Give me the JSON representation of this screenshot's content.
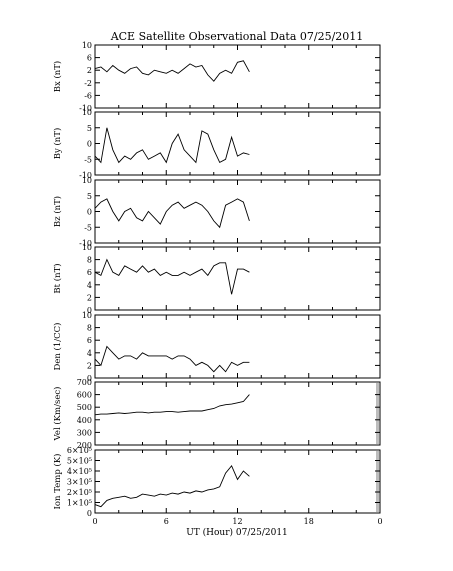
{
  "title": "ACE Satellite Observational Data   07/25/2011",
  "x_label": "UT (Hour)   07/25/2011",
  "x_ticks": [
    "0",
    "6",
    "12",
    "18",
    "0"
  ],
  "chart_data": [
    {
      "type": "line",
      "ylabel": "Bx (nT)",
      "ylim": [
        -10,
        10
      ],
      "yticks": [
        "10",
        "6",
        "2",
        "-2",
        "-6",
        "-10"
      ],
      "ytick_values": [
        10,
        6,
        2,
        -2,
        -6,
        -10
      ],
      "xlim": [
        0,
        24
      ],
      "x": [
        0,
        0.5,
        1,
        1.5,
        2,
        2.5,
        3,
        3.5,
        4,
        4.5,
        5,
        5.5,
        6,
        6.5,
        7,
        7.5,
        8,
        8.5,
        9,
        9.5,
        10,
        10.5,
        11,
        11.5,
        12,
        12.5,
        13
      ],
      "y": [
        2.5,
        3,
        1.5,
        3.5,
        2,
        1,
        2.5,
        3,
        1,
        0.5,
        2,
        1.5,
        1,
        2,
        1,
        2.5,
        4,
        3,
        3.5,
        0.5,
        -1.5,
        1,
        2,
        1,
        4.5,
        5,
        1.5
      ]
    },
    {
      "type": "line",
      "ylabel": "By (nT)",
      "ylim": [
        -10,
        10
      ],
      "yticks": [
        "10",
        "5",
        "0",
        "-5",
        "-10"
      ],
      "ytick_values": [
        10,
        5,
        0,
        -5,
        -10
      ],
      "xlim": [
        0,
        24
      ],
      "x": [
        0,
        0.5,
        1,
        1.5,
        2,
        2.5,
        3,
        3.5,
        4,
        4.5,
        5,
        5.5,
        6,
        6.5,
        7,
        7.5,
        8,
        8.5,
        9,
        9.5,
        10,
        10.5,
        11,
        11.5,
        12,
        12.5,
        13
      ],
      "y": [
        -4,
        -6,
        5,
        -2,
        -6,
        -4,
        -5,
        -3,
        -2,
        -5,
        -4,
        -3,
        -6,
        0,
        3,
        -2,
        -4,
        -6,
        4,
        3,
        -2,
        -6,
        -5,
        2,
        -4,
        -3,
        -3.5
      ]
    },
    {
      "type": "line",
      "ylabel": "Bz (nT)",
      "ylim": [
        -10,
        10
      ],
      "yticks": [
        "10",
        "5",
        "0",
        "-5",
        "-10"
      ],
      "ytick_values": [
        10,
        5,
        0,
        -5,
        -10
      ],
      "xlim": [
        0,
        24
      ],
      "x": [
        0,
        0.5,
        1,
        1.5,
        2,
        2.5,
        3,
        3.5,
        4,
        4.5,
        5,
        5.5,
        6,
        6.5,
        7,
        7.5,
        8,
        8.5,
        9,
        9.5,
        10,
        10.5,
        11,
        11.5,
        12,
        12.5,
        13
      ],
      "y": [
        1,
        3,
        4,
        0,
        -3,
        0,
        1,
        -2,
        -3,
        0,
        -2,
        -4,
        0,
        2,
        3,
        1,
        2,
        3,
        2,
        0,
        -3,
        -5,
        2,
        3,
        4,
        3,
        -3
      ]
    },
    {
      "type": "line",
      "ylabel": "Bt (nT)",
      "ylim": [
        0,
        10
      ],
      "yticks": [
        "10",
        "8",
        "6",
        "4",
        "2",
        "0"
      ],
      "ytick_values": [
        10,
        8,
        6,
        4,
        2,
        0
      ],
      "xlim": [
        0,
        24
      ],
      "x": [
        0,
        0.5,
        1,
        1.5,
        2,
        2.5,
        3,
        3.5,
        4,
        4.5,
        5,
        5.5,
        6,
        6.5,
        7,
        7.5,
        8,
        8.5,
        9,
        9.5,
        10,
        10.5,
        11,
        11.5,
        12,
        12.5,
        13
      ],
      "y": [
        6,
        5.5,
        8,
        6,
        5.5,
        7,
        6.5,
        6,
        7,
        6,
        6.5,
        5.5,
        6,
        5.5,
        5.5,
        6,
        5.5,
        6,
        6.5,
        5.5,
        7,
        7.5,
        7.5,
        2.5,
        6.5,
        6.5,
        6
      ]
    },
    {
      "type": "line",
      "ylabel": "Den (1/CC)",
      "ylim": [
        0,
        10
      ],
      "yticks": [
        "10",
        "8",
        "6",
        "4",
        "2",
        "0"
      ],
      "ytick_values": [
        10,
        8,
        6,
        4,
        2,
        0
      ],
      "xlim": [
        0,
        24
      ],
      "x": [
        0,
        0.5,
        1,
        1.5,
        2,
        2.5,
        3,
        3.5,
        4,
        4.5,
        5,
        5.5,
        6,
        6.5,
        7,
        7.5,
        8,
        8.5,
        9,
        9.5,
        10,
        10.5,
        11,
        11.5,
        12,
        12.5,
        13
      ],
      "y": [
        3,
        2,
        5,
        4,
        3,
        3.5,
        3.5,
        3,
        4,
        3.5,
        3.5,
        3.5,
        3.5,
        3,
        3.5,
        3.5,
        3,
        2,
        2.5,
        2,
        1,
        2,
        1,
        2.5,
        2,
        2.5,
        2.5
      ]
    },
    {
      "type": "line",
      "ylabel": "Vel (Km/sec)",
      "ylim": [
        200,
        700
      ],
      "yticks": [
        "700",
        "600",
        "500",
        "400",
        "300",
        "200"
      ],
      "ytick_values": [
        700,
        600,
        500,
        400,
        300,
        200
      ],
      "xlim": [
        0,
        24
      ],
      "x": [
        0,
        0.5,
        1,
        1.5,
        2,
        2.5,
        3,
        3.5,
        4,
        4.5,
        5,
        5.5,
        6,
        6.5,
        7,
        7.5,
        8,
        8.5,
        9,
        9.5,
        10,
        10.5,
        11,
        11.5,
        12,
        12.5,
        13
      ],
      "y": [
        440,
        445,
        445,
        450,
        455,
        450,
        455,
        460,
        460,
        455,
        460,
        460,
        465,
        465,
        460,
        465,
        470,
        470,
        470,
        480,
        490,
        510,
        520,
        525,
        535,
        545,
        600
      ]
    },
    {
      "type": "line",
      "ylabel": "Ion Temp (K)",
      "ylim": [
        0,
        600000
      ],
      "yticks": [
        "6×10⁵",
        "5×10⁵",
        "4×10⁵",
        "3×10⁵",
        "2×10⁵",
        "1×10⁵",
        "0"
      ],
      "ytick_values": [
        600000,
        500000,
        400000,
        300000,
        200000,
        100000,
        0
      ],
      "xlim": [
        0,
        24
      ],
      "x": [
        0,
        0.5,
        1,
        1.5,
        2,
        2.5,
        3,
        3.5,
        4,
        4.5,
        5,
        5.5,
        6,
        6.5,
        7,
        7.5,
        8,
        8.5,
        9,
        9.5,
        10,
        10.5,
        11,
        11.5,
        12,
        12.5,
        13
      ],
      "y": [
        80000,
        60000,
        120000,
        140000,
        150000,
        160000,
        140000,
        150000,
        180000,
        170000,
        160000,
        180000,
        170000,
        190000,
        180000,
        200000,
        190000,
        210000,
        200000,
        220000,
        230000,
        250000,
        380000,
        450000,
        320000,
        400000,
        350000
      ]
    }
  ]
}
